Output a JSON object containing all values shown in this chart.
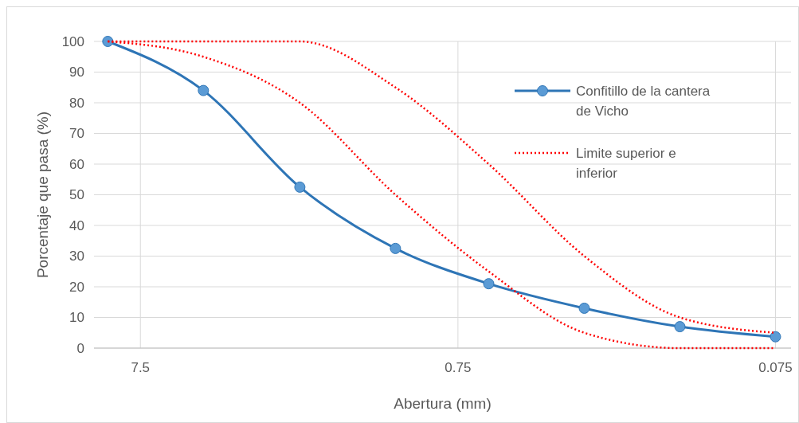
{
  "chart_data": {
    "type": "line",
    "xlabel": "Abertura (mm)",
    "ylabel": "Porcentaje que pasa (%)",
    "log": "x",
    "xlim": [
      10.5,
      0.067
    ],
    "xticks": [
      7.5,
      0.75,
      0.075
    ],
    "ylim": [
      0,
      100
    ],
    "yticks": [
      0,
      10,
      20,
      30,
      40,
      50,
      60,
      70,
      80,
      90,
      100
    ],
    "grid": true,
    "legend": "right",
    "x": [
      9.5,
      4.75,
      2.36,
      1.18,
      0.6,
      0.3,
      0.15,
      0.075
    ],
    "series": [
      {
        "name": "Confitillo de la cantera de Vicho",
        "color": "#2e75b6",
        "marker": "circle",
        "line_style": "solid",
        "values": [
          100,
          84,
          52.5,
          32.5,
          21,
          13,
          7,
          3.7
        ]
      },
      {
        "name": "Limite superior e inferior",
        "color": "#ff0000",
        "marker": "none",
        "line_style": "dotted",
        "values": [
          100,
          100,
          100,
          85,
          60,
          30,
          10,
          5
        ]
      },
      {
        "color": "#ff0000",
        "marker": "none",
        "line_style": "dotted",
        "values": [
          100,
          95,
          80,
          50,
          25,
          5,
          0,
          0
        ]
      }
    ]
  }
}
